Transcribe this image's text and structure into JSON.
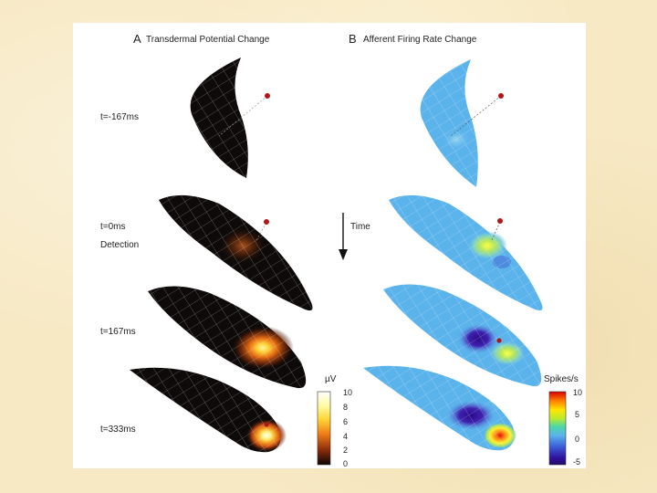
{
  "panel_a": {
    "letter": "A",
    "title": "Transdermal Potential Change"
  },
  "panel_b": {
    "letter": "B",
    "title": "Afferent Firing Rate Change"
  },
  "time_labels": [
    "t=-167ms",
    "t=0ms",
    "t=167ms",
    "t=333ms"
  ],
  "detection_label": "Detection",
  "time_arrow_label": "Time",
  "colorbar_a": {
    "unit": "µV",
    "ticks": [
      "10",
      "8",
      "6",
      "4",
      "2",
      "0"
    ]
  },
  "colorbar_b": {
    "unit": "Spikes/s",
    "ticks": [
      "10",
      "5",
      "0",
      "-5"
    ]
  },
  "colors": {
    "background": "#f7e9c4",
    "potential_surface": "#0d0a09",
    "firing_surface": "#5bb3ec",
    "stimulus_dot": "#b01818"
  }
}
